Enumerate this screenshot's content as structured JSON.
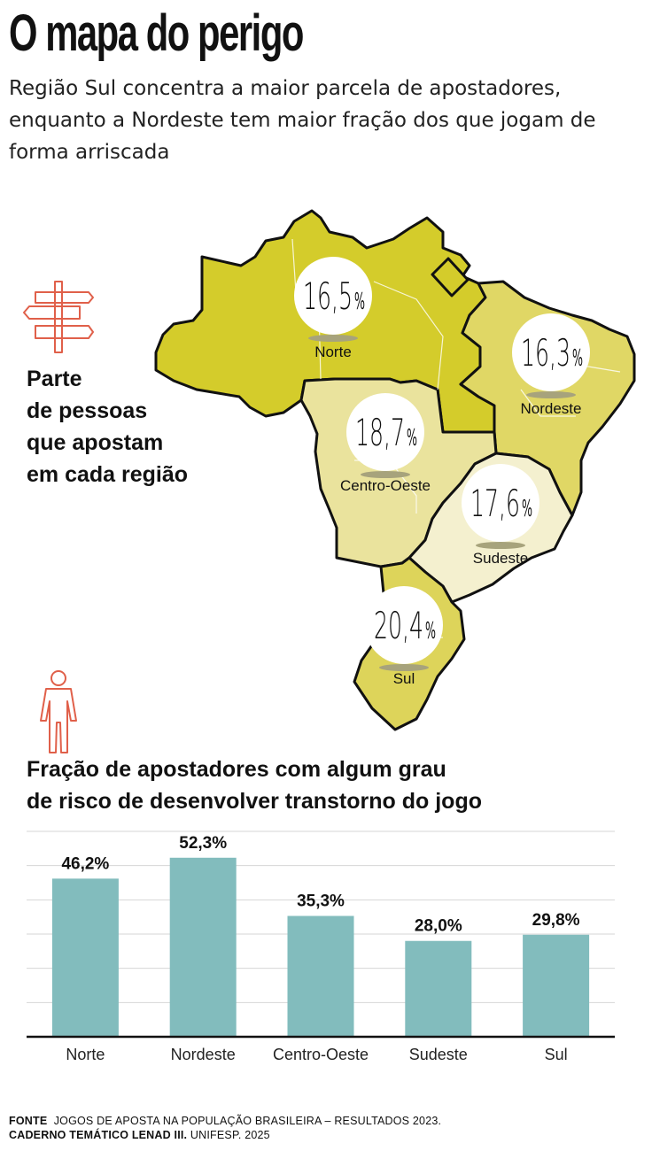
{
  "title": "O mapa do perigo",
  "subtitle": "Região Sul concentra a maior parcela de apostadores, enquanto a Nordeste tem maior fração dos que jogam de forma arriscada",
  "map_section": {
    "heading_lines": [
      "Parte",
      "de pessoas",
      "que apostam",
      "em cada região"
    ],
    "icon": "signpost-icon",
    "regions": [
      {
        "name": "Norte",
        "value": "16,5",
        "color": "#d4cc2b"
      },
      {
        "name": "Nordeste",
        "value": "16,3",
        "color": "#e0d765"
      },
      {
        "name": "Centro-Oeste",
        "value": "18,7",
        "color": "#eae39d"
      },
      {
        "name": "Sudeste",
        "value": "17,6",
        "color": "#f4f0cf"
      },
      {
        "name": "Sul",
        "value": "20,4",
        "color": "#ddd45a"
      }
    ],
    "percent_sign": "%"
  },
  "chart_section": {
    "heading_lines": [
      "Fração de apostadores com algum grau",
      "de risco de desenvolver transtorno do jogo"
    ],
    "icon": "person-icon"
  },
  "chart_data": {
    "type": "bar",
    "title": "Fração de apostadores com algum grau de risco de desenvolver transtorno do jogo",
    "categories": [
      "Norte",
      "Nordeste",
      "Centro-Oeste",
      "Sudeste",
      "Sul"
    ],
    "values": [
      46.2,
      52.3,
      35.3,
      28.0,
      29.8
    ],
    "value_labels": [
      "46,2%",
      "52,3%",
      "35,3%",
      "28,0%",
      "29,8%"
    ],
    "ylim": [
      0,
      60
    ],
    "grid": true,
    "bar_color": "#82bcbd"
  },
  "footer": {
    "label": "FONTE",
    "line1": "JOGOS DE APOSTA NA POPULAÇÃO BRASILEIRA – RESULTADOS 2023.",
    "line2_bold": "CADERNO TEMÁTICO LENAD III.",
    "line2_rest": "UNIFESP. 2025"
  },
  "colors": {
    "accent_icon": "#e0604a",
    "map_outline": "#111111",
    "badge_shadow": "#a7a37c"
  }
}
